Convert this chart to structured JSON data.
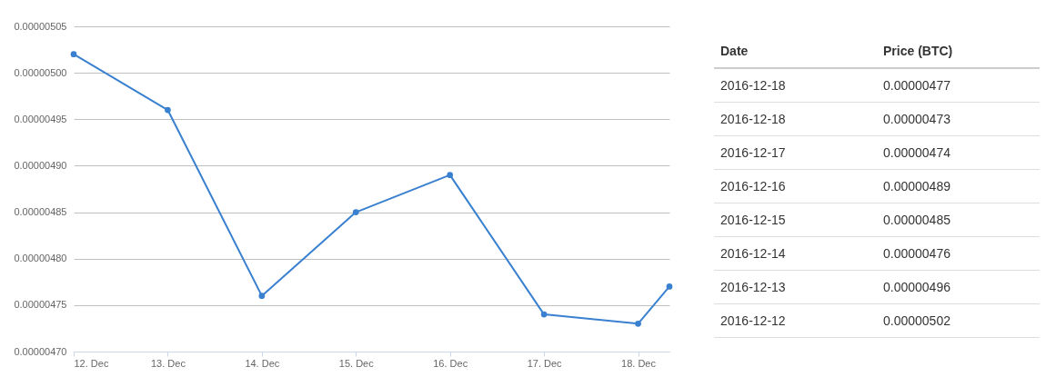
{
  "chart_data": [
    {
      "type": "line",
      "x": [
        "2016-12-12",
        "2016-12-13",
        "2016-12-14",
        "2016-12-15",
        "2016-12-16",
        "2016-12-17",
        "2016-12-18",
        "2016-12-18T08:00"
      ],
      "series": [
        {
          "color": "#3a80d0",
          "values": [
            5.02e-06,
            4.96e-06,
            4.76e-06,
            4.85e-06,
            4.89e-06,
            4.74e-06,
            4.73e-06,
            4.77e-06
          ]
        }
      ],
      "xlim": [
        "2016-12-12",
        "2016-12-18T08:00"
      ],
      "xticks": [
        {
          "value": "2016-12-12",
          "label": "12. Dec"
        },
        {
          "value": "2016-12-13",
          "label": "13. Dec"
        },
        {
          "value": "2016-12-14",
          "label": "14. Dec"
        },
        {
          "value": "2016-12-15",
          "label": "15. Dec"
        },
        {
          "value": "2016-12-16",
          "label": "16. Dec"
        },
        {
          "value": "2016-12-17",
          "label": "17. Dec"
        },
        {
          "value": "2016-12-18",
          "label": "18. Dec"
        }
      ],
      "ylim": [
        4.7e-06,
        5.05e-06
      ],
      "yticks": [
        {
          "value": 4.7e-06,
          "label": "0.00000470"
        },
        {
          "value": 4.75e-06,
          "label": "0.00000475"
        },
        {
          "value": 4.8e-06,
          "label": "0.00000480"
        },
        {
          "value": 4.85e-06,
          "label": "0.00000485"
        },
        {
          "value": 4.9e-06,
          "label": "0.00000490"
        },
        {
          "value": 4.95e-06,
          "label": "0.00000495"
        },
        {
          "value": 5e-06,
          "label": "0.00000500"
        },
        {
          "value": 5.05e-06,
          "label": "0.00000505"
        }
      ],
      "grid": "y",
      "marker": "circle"
    },
    {
      "type": "other",
      "annotations": [
        "Date",
        "Price (BTC)",
        "2016-12-18",
        "0.00000477",
        "2016-12-18",
        "0.00000473",
        "2016-12-17",
        "0.00000474",
        "2016-12-16",
        "0.00000489",
        "2016-12-15",
        "0.00000485",
        "2016-12-14",
        "0.00000476",
        "2016-12-13",
        "0.00000496",
        "2016-12-12",
        "0.00000502"
      ]
    }
  ]
}
